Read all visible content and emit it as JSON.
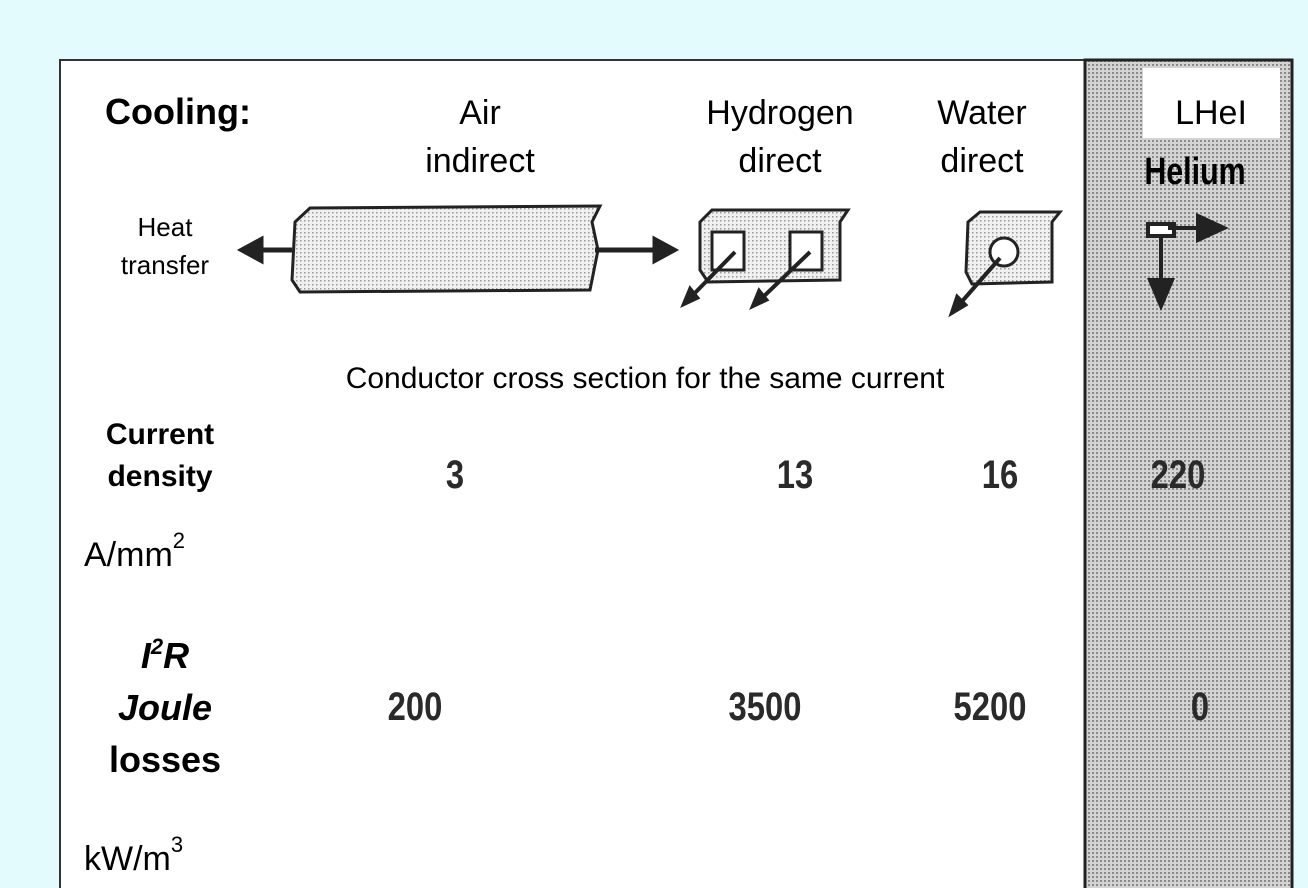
{
  "header": {
    "label": "Cooling:",
    "columns": [
      {
        "lines": [
          "Air",
          "indirect"
        ]
      },
      {
        "lines": [
          "Hydrogen",
          "direct"
        ]
      },
      {
        "lines": [
          "Water",
          "direct"
        ]
      },
      {
        "lines": [
          "LHeI",
          "Helium"
        ]
      }
    ]
  },
  "heat_transfer": {
    "lines": [
      "Heat",
      "transfer"
    ]
  },
  "cross_section_caption": "Conductor cross section for the same current",
  "rows": [
    {
      "label_lines": [
        "Current",
        "density"
      ],
      "unit": {
        "base": "A/mm",
        "sup": "2"
      },
      "values": [
        3,
        13,
        16,
        220
      ]
    },
    {
      "label_symbol": {
        "base": "I",
        "sup": "2",
        "tail": "R"
      },
      "label_lines": [
        "Joule",
        "losses"
      ],
      "unit": {
        "base": "kW/m",
        "sup": "3"
      },
      "values": [
        200,
        3500,
        5200,
        0
      ]
    }
  ]
}
